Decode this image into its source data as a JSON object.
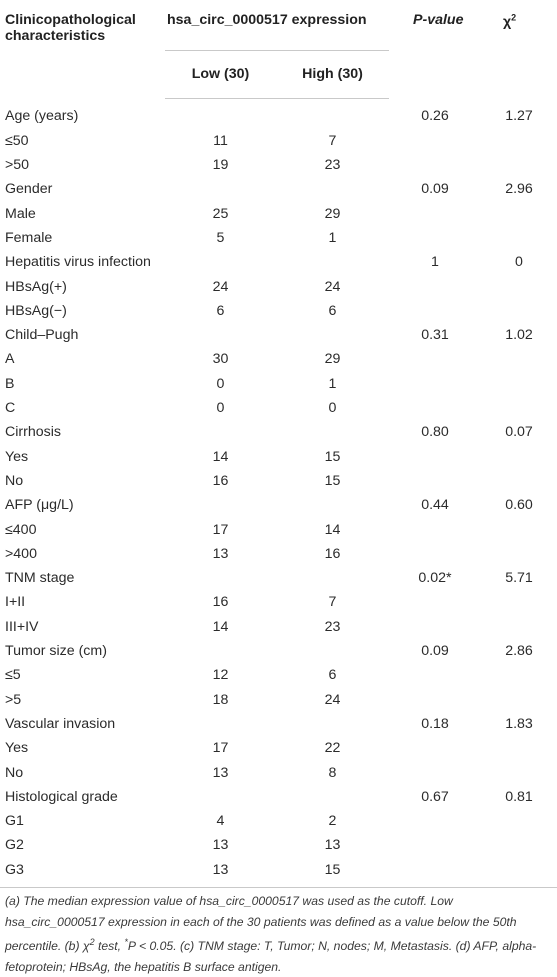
{
  "table": {
    "header": {
      "col1": "Clinicopathological characteristics",
      "col2": "hsa_circ_0000517 expression",
      "col3": "P-value",
      "col4": "χ2",
      "sub_low": "Low (30)",
      "sub_high": "High (30)"
    },
    "rows": [
      {
        "label": "Age (years)",
        "low": "",
        "high": "",
        "p": "0.26",
        "chi": "1.27"
      },
      {
        "label": "≤50",
        "low": "11",
        "high": "7",
        "p": "",
        "chi": ""
      },
      {
        "label": ">50",
        "low": "19",
        "high": "23",
        "p": "",
        "chi": ""
      },
      {
        "label": "Gender",
        "low": "",
        "high": "",
        "p": "0.09",
        "chi": "2.96"
      },
      {
        "label": "Male",
        "low": "25",
        "high": "29",
        "p": "",
        "chi": ""
      },
      {
        "label": "Female",
        "low": "5",
        "high": "1",
        "p": "",
        "chi": ""
      },
      {
        "label": "Hepatitis virus infection",
        "low": "",
        "high": "",
        "p": "1",
        "chi": "0"
      },
      {
        "label": "HBsAg(+)",
        "low": "24",
        "high": "24",
        "p": "",
        "chi": ""
      },
      {
        "label": "HBsAg(−)",
        "low": "6",
        "high": "6",
        "p": "",
        "chi": ""
      },
      {
        "label": "Child–Pugh",
        "low": "",
        "high": "",
        "p": "0.31",
        "chi": "1.02"
      },
      {
        "label": "A",
        "low": "30",
        "high": "29",
        "p": "",
        "chi": ""
      },
      {
        "label": "B",
        "low": "0",
        "high": "1",
        "p": "",
        "chi": ""
      },
      {
        "label": "C",
        "low": "0",
        "high": "0",
        "p": "",
        "chi": ""
      },
      {
        "label": "Cirrhosis",
        "low": "",
        "high": "",
        "p": "0.80",
        "chi": "0.07"
      },
      {
        "label": "Yes",
        "low": "14",
        "high": "15",
        "p": "",
        "chi": ""
      },
      {
        "label": "No",
        "low": "16",
        "high": "15",
        "p": "",
        "chi": ""
      },
      {
        "label": "AFP (μg/L)",
        "low": "",
        "high": "",
        "p": "0.44",
        "chi": "0.60"
      },
      {
        "label": "≤400",
        "low": "17",
        "high": "14",
        "p": "",
        "chi": ""
      },
      {
        "label": ">400",
        "low": "13",
        "high": "16",
        "p": "",
        "chi": ""
      },
      {
        "label": "TNM stage",
        "low": "",
        "high": "",
        "p": "0.02*",
        "chi": "5.71"
      },
      {
        "label": "I+II",
        "low": "16",
        "high": "7",
        "p": "",
        "chi": ""
      },
      {
        "label": "III+IV",
        "low": "14",
        "high": "23",
        "p": "",
        "chi": ""
      },
      {
        "label": "Tumor size (cm)",
        "low": "",
        "high": "",
        "p": "0.09",
        "chi": "2.86"
      },
      {
        "label": "≤5",
        "low": "12",
        "high": "6",
        "p": "",
        "chi": ""
      },
      {
        "label": ">5",
        "low": "18",
        "high": "24",
        "p": "",
        "chi": ""
      },
      {
        "label": "Vascular invasion",
        "low": "",
        "high": "",
        "p": "0.18",
        "chi": "1.83"
      },
      {
        "label": "Yes",
        "low": "17",
        "high": "22",
        "p": "",
        "chi": ""
      },
      {
        "label": "No",
        "low": "13",
        "high": "8",
        "p": "",
        "chi": ""
      },
      {
        "label": "Histological grade",
        "low": "",
        "high": "",
        "p": "0.67",
        "chi": "0.81"
      },
      {
        "label": "G1",
        "low": "4",
        "high": "2",
        "p": "",
        "chi": ""
      },
      {
        "label": "G2",
        "low": "13",
        "high": "13",
        "p": "",
        "chi": ""
      },
      {
        "label": "G3",
        "low": "13",
        "high": "15",
        "p": "",
        "chi": ""
      }
    ]
  },
  "footnote": "(a) The median expression value of hsa_circ_0000517 was used as the cutoff. Low hsa_circ_0000517 expression in each of the 30 patients was defined as a value below the 50th percentile. (b) χ2 test, *P < 0.05. (c) TNM stage: T, Tumor; N, nodes; M, Metastasis. (d) AFP, alpha-fetoprotein; HBsAg, the hepatitis B surface antigen."
}
